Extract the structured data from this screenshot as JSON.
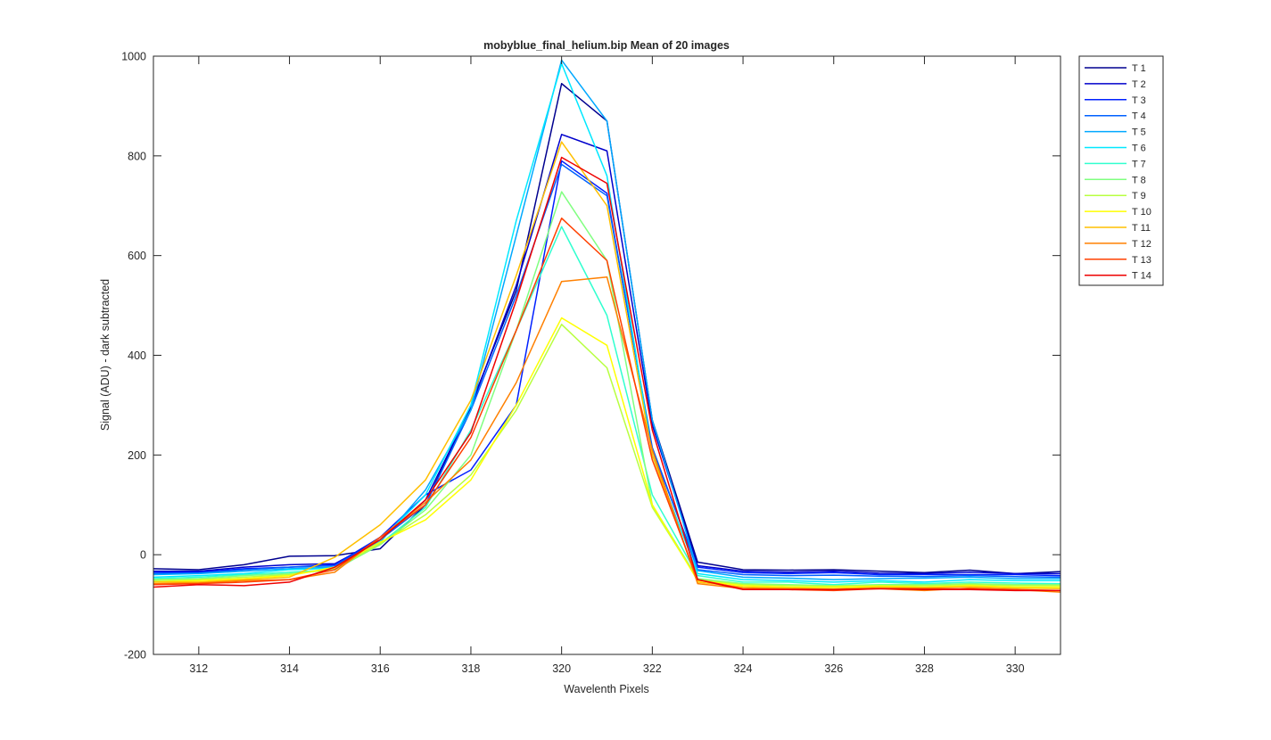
{
  "chart_data": {
    "type": "line",
    "title": "mobyblue_final_helium.bip  Mean of 20 images",
    "xlabel": "Wavelenth Pixels",
    "ylabel": "Signal (ADU) - dark subtracted",
    "xlim": [
      311,
      331
    ],
    "ylim": [
      -200,
      1000
    ],
    "xticks": [
      312,
      314,
      316,
      318,
      320,
      322,
      324,
      326,
      328,
      330
    ],
    "yticks": [
      -200,
      0,
      200,
      400,
      600,
      800,
      1000
    ],
    "grid": false,
    "legend_position": "outside-top-right",
    "x": [
      311,
      312,
      313,
      314,
      315,
      316,
      317,
      318,
      319,
      320,
      321,
      322,
      323,
      324,
      325,
      326,
      327,
      328,
      329,
      330,
      331
    ],
    "series": [
      {
        "name": "T 1",
        "color": "#00008f",
        "values": [
          -28,
          -30,
          -20,
          -3,
          -2,
          12,
          100,
          300,
          530,
          945,
          870,
          270,
          -15,
          -30,
          -31,
          -30,
          -33,
          -36,
          -31,
          -38,
          -34
        ]
      },
      {
        "name": "T 2",
        "color": "#0000cc",
        "values": [
          -33,
          -33,
          -25,
          -20,
          -18,
          30,
          110,
          295,
          540,
          843,
          810,
          260,
          -22,
          -33,
          -35,
          -33,
          -37,
          -38,
          -35,
          -38,
          -38
        ]
      },
      {
        "name": "T 3",
        "color": "#0020ff",
        "values": [
          -35,
          -35,
          -28,
          -25,
          -20,
          35,
          120,
          170,
          300,
          790,
          725,
          210,
          -25,
          -36,
          -38,
          -36,
          -40,
          -40,
          -40,
          -40,
          -42
        ]
      },
      {
        "name": "T 4",
        "color": "#0060ff",
        "values": [
          -38,
          -37,
          -30,
          -25,
          -22,
          30,
          100,
          290,
          520,
          783,
          720,
          215,
          -30,
          -40,
          -42,
          -41,
          -43,
          -44,
          -42,
          -44,
          -45
        ]
      },
      {
        "name": "T 5",
        "color": "#00a8ff",
        "values": [
          -40,
          -38,
          -33,
          -28,
          -25,
          25,
          130,
          290,
          640,
          992,
          870,
          270,
          -32,
          -45,
          -47,
          -50,
          -48,
          -47,
          -45,
          -48,
          -48
        ]
      },
      {
        "name": "T 6",
        "color": "#00e8ff",
        "values": [
          -45,
          -42,
          -38,
          -30,
          -27,
          28,
          120,
          300,
          670,
          985,
          760,
          200,
          -38,
          -50,
          -52,
          -55,
          -52,
          -55,
          -50,
          -52,
          -52
        ]
      },
      {
        "name": "T 7",
        "color": "#30ffcf",
        "values": [
          -48,
          -45,
          -40,
          -35,
          -30,
          22,
          95,
          250,
          450,
          658,
          480,
          120,
          -42,
          -55,
          -55,
          -60,
          -55,
          -58,
          -55,
          -57,
          -58
        ]
      },
      {
        "name": "T 8",
        "color": "#80ff80",
        "values": [
          -50,
          -48,
          -42,
          -38,
          -30,
          20,
          90,
          200,
          450,
          728,
          590,
          100,
          -48,
          -58,
          -60,
          -62,
          -60,
          -60,
          -58,
          -60,
          -60
        ]
      },
      {
        "name": "T 9",
        "color": "#b8ff40",
        "values": [
          -52,
          -50,
          -45,
          -40,
          -28,
          22,
          80,
          160,
          290,
          462,
          375,
          95,
          -50,
          -60,
          -62,
          -63,
          -62,
          -62,
          -60,
          -62,
          -62
        ]
      },
      {
        "name": "T 10",
        "color": "#ffff00",
        "values": [
          -55,
          -52,
          -48,
          -42,
          -25,
          25,
          70,
          150,
          300,
          475,
          420,
          100,
          -52,
          -62,
          -65,
          -65,
          -63,
          -65,
          -62,
          -65,
          -65
        ]
      },
      {
        "name": "T 11",
        "color": "#ffbf00",
        "values": [
          -55,
          -55,
          -50,
          -45,
          -5,
          60,
          150,
          310,
          560,
          828,
          700,
          200,
          -55,
          -65,
          -67,
          -68,
          -65,
          -66,
          -64,
          -67,
          -68
        ]
      },
      {
        "name": "T 12",
        "color": "#ff8000",
        "values": [
          -58,
          -57,
          -52,
          -50,
          -35,
          35,
          105,
          190,
          345,
          548,
          557,
          210,
          -58,
          -68,
          -68,
          -70,
          -68,
          -72,
          -67,
          -70,
          -75
        ]
      },
      {
        "name": "T 13",
        "color": "#ff4000",
        "values": [
          -60,
          -58,
          -55,
          -50,
          -30,
          35,
          100,
          235,
          450,
          675,
          590,
          190,
          -50,
          -68,
          -70,
          -72,
          -68,
          -68,
          -68,
          -70,
          -72
        ]
      },
      {
        "name": "T 14",
        "color": "#ee0000",
        "values": [
          -65,
          -60,
          -62,
          -55,
          -25,
          30,
          110,
          245,
          510,
          797,
          745,
          250,
          -50,
          -70,
          -70,
          -70,
          -68,
          -70,
          -70,
          -72,
          -72
        ]
      }
    ]
  }
}
